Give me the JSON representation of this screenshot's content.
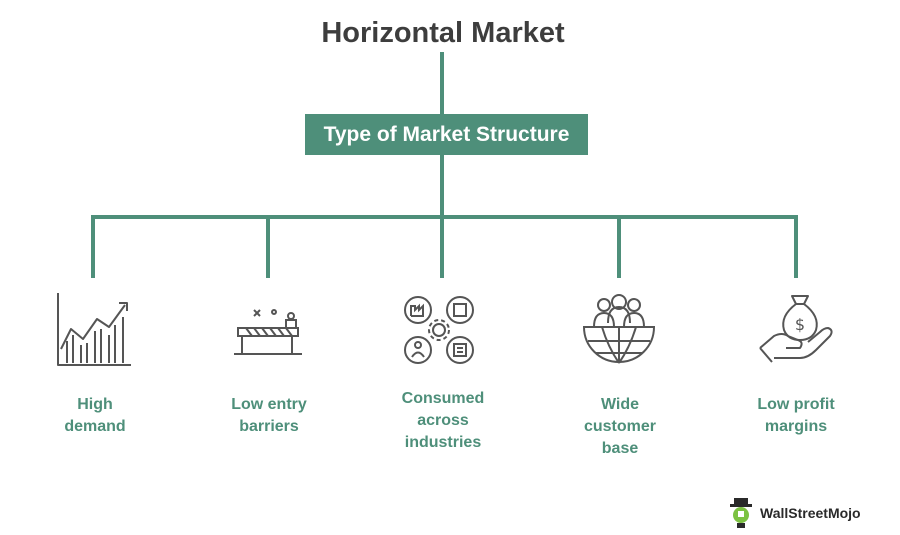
{
  "diagram": {
    "title": "Horizontal Market",
    "root": "Type of Market Structure",
    "items": [
      {
        "label_lines": [
          "High",
          "demand"
        ],
        "icon": "bar-chart-growth-icon"
      },
      {
        "label_lines": [
          "Low entry",
          "barriers"
        ],
        "icon": "barrier-icon"
      },
      {
        "label_lines": [
          "Consumed",
          "across",
          "industries"
        ],
        "icon": "industries-network-icon"
      },
      {
        "label_lines": [
          "Wide",
          "customer",
          "base"
        ],
        "icon": "global-customers-icon"
      },
      {
        "label_lines": [
          "Low profit",
          "margins"
        ],
        "icon": "money-bag-hand-icon"
      }
    ]
  },
  "brand": {
    "name": "WallStreetMojo",
    "icon": "wallstreetmojo-logo-icon"
  },
  "colors": {
    "accent": "#4e8f7a",
    "title": "#3d3d3d",
    "icon_stroke": "#555555"
  }
}
